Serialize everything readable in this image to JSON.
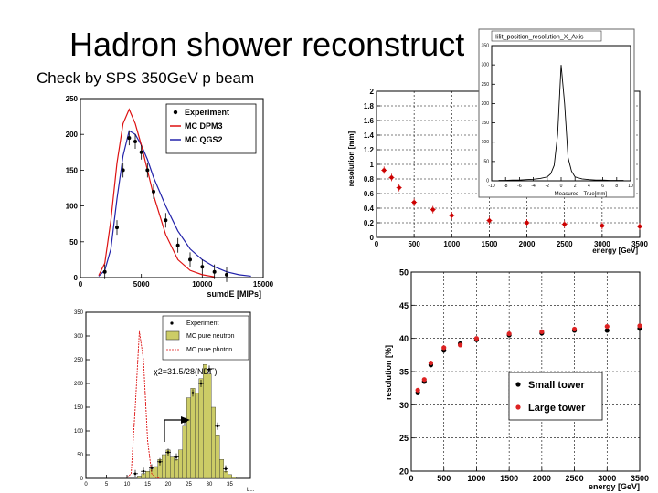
{
  "slide": {
    "title": "Hadron shower reconstruct",
    "subtitle": "Check by SPS 350GeV p beam"
  },
  "chart_data": [
    {
      "id": "sumdE",
      "type": "line",
      "title": "",
      "xlabel": "sumdE [MIPs]",
      "ylabel": "",
      "xlim": [
        0,
        15000
      ],
      "ylim": [
        0,
        250
      ],
      "xticks": [
        0,
        5000,
        10000,
        15000
      ],
      "yticks": [
        0,
        50,
        100,
        150,
        200,
        250
      ],
      "legend": [
        "Experiment",
        "MC DPM3",
        "MC QGS2"
      ],
      "colors": {
        "experiment": "#000000",
        "dpm3": "#dd1111",
        "qgs2": "#2222aa"
      },
      "series": [
        {
          "name": "Experiment",
          "x": [
            2000,
            3000,
            3500,
            4000,
            4500,
            5000,
            5500,
            6000,
            7000,
            8000,
            9000,
            10000,
            11000,
            12000
          ],
          "y": [
            8,
            70,
            150,
            195,
            190,
            175,
            150,
            120,
            80,
            45,
            25,
            15,
            8,
            4
          ]
        },
        {
          "name": "MC DPM3",
          "x": [
            1500,
            2000,
            2500,
            3000,
            3500,
            4000,
            4500,
            5000,
            5500,
            6000,
            7000,
            8000,
            9000,
            10000,
            11000
          ],
          "y": [
            3,
            20,
            80,
            160,
            215,
            235,
            215,
            185,
            150,
            115,
            60,
            25,
            10,
            4,
            1
          ]
        },
        {
          "name": "MC QGS2",
          "x": [
            1500,
            2000,
            2500,
            3000,
            3500,
            4000,
            4500,
            5000,
            5500,
            6000,
            7000,
            8000,
            9000,
            10000,
            11000,
            12000,
            13000,
            14000
          ],
          "y": [
            2,
            10,
            40,
            110,
            170,
            205,
            200,
            185,
            165,
            140,
            100,
            65,
            40,
            25,
            15,
            8,
            4,
            2
          ]
        }
      ]
    },
    {
      "id": "neutron",
      "type": "bar",
      "title": "",
      "xlabel": "",
      "ylabel": "",
      "xlim": [
        0,
        40
      ],
      "ylim": [
        0,
        350
      ],
      "xticks": [
        0,
        5,
        10,
        15,
        20,
        25,
        30,
        35
      ],
      "yticks": [
        0,
        50,
        100,
        150,
        200,
        250,
        300,
        350
      ],
      "legend": [
        "Experiment",
        "MC pure neutron",
        "MC pure photon"
      ],
      "annotation": "χ2=31.5/28(NDF)",
      "xlabel_partial": "L...",
      "colors": {
        "fill": "#cccc66",
        "outline": "#333333",
        "photon": "#dd1111",
        "experiment": "#000000"
      },
      "series": [
        {
          "name": "MC pure neutron",
          "x": [
            13,
            14,
            15,
            16,
            17,
            18,
            19,
            20,
            21,
            22,
            23,
            24,
            25,
            26,
            27,
            28,
            29,
            30,
            31,
            32,
            33,
            34,
            35,
            36
          ],
          "y": [
            5,
            10,
            15,
            20,
            25,
            40,
            50,
            60,
            45,
            40,
            60,
            110,
            170,
            190,
            180,
            210,
            240,
            220,
            150,
            90,
            40,
            15,
            8,
            3
          ]
        },
        {
          "name": "MC pure photon",
          "x": [
            10,
            11,
            12,
            13,
            14,
            15,
            16,
            17,
            18
          ],
          "y": [
            2,
            10,
            150,
            310,
            250,
            80,
            10,
            2,
            0
          ]
        },
        {
          "name": "Experiment",
          "x": [
            12,
            14,
            16,
            18,
            20,
            22,
            24,
            26,
            28,
            30,
            32,
            34
          ],
          "y": [
            10,
            15,
            22,
            35,
            55,
            45,
            120,
            180,
            200,
            230,
            110,
            20
          ]
        }
      ]
    },
    {
      "id": "pos_res",
      "type": "scatter",
      "title": "",
      "xlabel": "energy [GeV]",
      "ylabel": "resolution [mm]",
      "xlim": [
        0,
        3500
      ],
      "ylim": [
        0,
        2
      ],
      "xticks": [
        0,
        500,
        1000,
        1500,
        2000,
        2500,
        3000,
        3500
      ],
      "yticks": [
        0,
        0.2,
        0.4,
        0.6,
        0.8,
        1,
        1.2,
        1.4,
        1.6,
        1.8,
        2
      ],
      "colors": {
        "points": "#cc0000"
      },
      "x": [
        100,
        200,
        300,
        500,
        750,
        1000,
        1500,
        2000,
        2500,
        3000,
        3500
      ],
      "y": [
        0.92,
        0.82,
        0.68,
        0.48,
        0.38,
        0.3,
        0.23,
        0.2,
        0.18,
        0.16,
        0.15
      ]
    },
    {
      "id": "inset",
      "type": "bar",
      "title": "Iilit_position_resolution_X_Axis",
      "xlabel": "Measured - True[mm]",
      "ylabel": "",
      "xlim": [
        -10,
        10
      ],
      "ylim": [
        0,
        350
      ],
      "xticks": [
        -10,
        -8,
        -6,
        -4,
        -2,
        0,
        2,
        4,
        6,
        8,
        10
      ],
      "yticks": [
        0,
        50,
        100,
        150,
        200,
        250,
        300,
        350
      ],
      "x": [
        -9,
        -8,
        -7,
        -6,
        -5,
        -4,
        -3,
        -2,
        -1.5,
        -1,
        -0.5,
        0,
        0.5,
        1,
        1.5,
        2,
        3,
        4,
        5,
        6,
        7,
        8,
        9
      ],
      "y": [
        1,
        1,
        2,
        2,
        3,
        4,
        6,
        10,
        18,
        40,
        120,
        300,
        200,
        60,
        25,
        10,
        5,
        3,
        2,
        2,
        1,
        1,
        1
      ]
    },
    {
      "id": "energy_res",
      "type": "scatter",
      "title": "",
      "xlabel": "energy [GeV]",
      "ylabel": "resolution [%]",
      "xlim": [
        0,
        3500
      ],
      "ylim": [
        20,
        50
      ],
      "xticks": [
        0,
        500,
        1000,
        1500,
        2000,
        2500,
        3000,
        3500
      ],
      "yticks": [
        20,
        25,
        30,
        35,
        40,
        45,
        50
      ],
      "legend": [
        "Small tower",
        "Large tower"
      ],
      "colors": {
        "small": "#000000",
        "large": "#dd2222"
      },
      "series": [
        {
          "name": "Small tower",
          "x": [
            100,
            200,
            300,
            500,
            750,
            1000,
            1500,
            2000,
            2500,
            3000,
            3500
          ],
          "y": [
            31.8,
            33.5,
            36,
            38.2,
            39.2,
            39.8,
            40.5,
            40.8,
            41.2,
            41.2,
            41.5
          ]
        },
        {
          "name": "Large tower",
          "x": [
            100,
            200,
            300,
            500,
            750,
            1000,
            1500,
            2000,
            2500,
            3000,
            3500
          ],
          "y": [
            32.2,
            33.8,
            36.3,
            38.6,
            39,
            40,
            40.7,
            41,
            41.4,
            41.8,
            41.9
          ]
        }
      ]
    }
  ]
}
